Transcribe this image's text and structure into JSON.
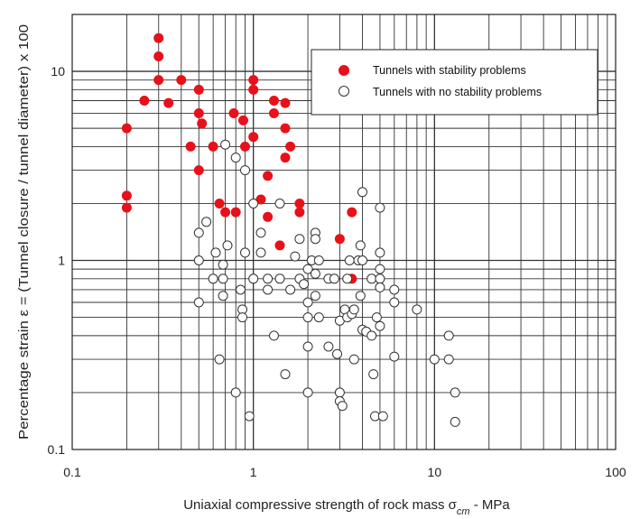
{
  "chart_data": {
    "type": "scatter",
    "xscale": "log",
    "yscale": "log",
    "xlim": [
      0.1,
      100
    ],
    "ylim": [
      0.1,
      20
    ],
    "grid": true,
    "legend_position": "top-right",
    "x_ticks": [
      {
        "value": 0.1,
        "label": "0.1"
      },
      {
        "value": 1,
        "label": "1"
      },
      {
        "value": 10,
        "label": "10"
      },
      {
        "value": 100,
        "label": "100"
      }
    ],
    "y_ticks": [
      {
        "value": 0.1,
        "label": "0.1"
      },
      {
        "value": 1,
        "label": "1"
      },
      {
        "value": 10,
        "label": "10"
      }
    ],
    "xlabel": {
      "prefix": "Uniaxial compressive strength of rock mass σ",
      "subscript": "cm",
      "suffix": " - MPa"
    },
    "ylabel": "Percentage strain ε = (Tunnel closure / tunnel diameter) x 100",
    "colors": {
      "filled": "#e8111a",
      "hollow_fill": "#ffffff",
      "hollow_stroke": "#333333",
      "grid": "#333333"
    },
    "series": [
      {
        "name": "Tunnels with stability problems",
        "marker": "filled",
        "points": [
          [
            0.2,
            5.0
          ],
          [
            0.2,
            2.2
          ],
          [
            0.2,
            1.9
          ],
          [
            0.25,
            7.0
          ],
          [
            0.3,
            15.0
          ],
          [
            0.3,
            12.0
          ],
          [
            0.3,
            9.0
          ],
          [
            0.34,
            6.8
          ],
          [
            0.4,
            9.0
          ],
          [
            0.45,
            4.0
          ],
          [
            0.5,
            8.0
          ],
          [
            0.5,
            6.0
          ],
          [
            0.5,
            3.0
          ],
          [
            0.52,
            5.3
          ],
          [
            0.6,
            4.0
          ],
          [
            0.65,
            2.0
          ],
          [
            0.7,
            1.8
          ],
          [
            0.78,
            6.0
          ],
          [
            0.8,
            1.8
          ],
          [
            0.88,
            5.5
          ],
          [
            0.9,
            4.0
          ],
          [
            1.0,
            9.0
          ],
          [
            1.0,
            8.0
          ],
          [
            1.0,
            4.5
          ],
          [
            1.1,
            2.1
          ],
          [
            1.2,
            2.8
          ],
          [
            1.2,
            1.7
          ],
          [
            1.3,
            7.0
          ],
          [
            1.3,
            6.0
          ],
          [
            1.4,
            1.2
          ],
          [
            1.5,
            6.8
          ],
          [
            1.5,
            5.0
          ],
          [
            1.5,
            3.5
          ],
          [
            1.6,
            4.0
          ],
          [
            1.8,
            2.0
          ],
          [
            1.8,
            1.8
          ],
          [
            3.0,
            1.3
          ],
          [
            3.5,
            1.8
          ],
          [
            3.5,
            0.8
          ]
        ]
      },
      {
        "name": "Tunnels with no stability problems",
        "marker": "hollow",
        "points": [
          [
            0.5,
            1.4
          ],
          [
            0.5,
            1.0
          ],
          [
            0.5,
            0.6
          ],
          [
            0.55,
            1.6
          ],
          [
            0.6,
            0.8
          ],
          [
            0.62,
            1.1
          ],
          [
            0.65,
            0.3
          ],
          [
            0.68,
            0.95
          ],
          [
            0.68,
            0.8
          ],
          [
            0.68,
            0.65
          ],
          [
            0.7,
            4.1
          ],
          [
            0.72,
            1.2
          ],
          [
            0.8,
            3.5
          ],
          [
            0.8,
            0.2
          ],
          [
            0.85,
            0.7
          ],
          [
            0.87,
            0.55
          ],
          [
            0.87,
            0.5
          ],
          [
            0.9,
            3.0
          ],
          [
            0.9,
            1.1
          ],
          [
            0.95,
            0.15
          ],
          [
            1.0,
            2.0
          ],
          [
            1.0,
            0.8
          ],
          [
            1.1,
            1.4
          ],
          [
            1.1,
            1.1
          ],
          [
            1.2,
            0.8
          ],
          [
            1.2,
            0.7
          ],
          [
            1.3,
            0.4
          ],
          [
            1.4,
            2.0
          ],
          [
            1.4,
            0.8
          ],
          [
            1.5,
            0.25
          ],
          [
            1.6,
            0.7
          ],
          [
            1.7,
            1.05
          ],
          [
            1.8,
            1.3
          ],
          [
            1.8,
            0.8
          ],
          [
            1.9,
            0.75
          ],
          [
            2.0,
            0.9
          ],
          [
            2.0,
            0.6
          ],
          [
            2.0,
            0.5
          ],
          [
            2.0,
            0.35
          ],
          [
            2.0,
            0.2
          ],
          [
            2.1,
            1.0
          ],
          [
            2.2,
            1.4
          ],
          [
            2.2,
            1.3
          ],
          [
            2.2,
            0.85
          ],
          [
            2.2,
            0.65
          ],
          [
            2.3,
            0.5
          ],
          [
            2.3,
            1.0
          ],
          [
            2.6,
            0.35
          ],
          [
            2.6,
            0.8
          ],
          [
            2.8,
            0.8
          ],
          [
            2.9,
            0.32
          ],
          [
            3.0,
            0.48
          ],
          [
            3.0,
            0.2
          ],
          [
            3.0,
            0.18
          ],
          [
            3.1,
            0.17
          ],
          [
            3.2,
            0.55
          ],
          [
            3.3,
            0.5
          ],
          [
            3.3,
            0.8
          ],
          [
            3.4,
            1.0
          ],
          [
            3.5,
            0.52
          ],
          [
            3.6,
            0.55
          ],
          [
            3.6,
            0.3
          ],
          [
            3.8,
            1.0
          ],
          [
            3.9,
            1.2
          ],
          [
            3.9,
            0.65
          ],
          [
            4.0,
            2.3
          ],
          [
            4.0,
            1.0
          ],
          [
            4.0,
            0.43
          ],
          [
            4.2,
            0.42
          ],
          [
            4.5,
            0.8
          ],
          [
            4.5,
            0.4
          ],
          [
            4.6,
            0.25
          ],
          [
            4.7,
            0.15
          ],
          [
            4.8,
            0.5
          ],
          [
            5.0,
            1.9
          ],
          [
            5.0,
            1.1
          ],
          [
            5.0,
            0.9
          ],
          [
            5.0,
            0.8
          ],
          [
            5.0,
            0.72
          ],
          [
            5.0,
            0.45
          ],
          [
            5.2,
            0.15
          ],
          [
            6.0,
            0.7
          ],
          [
            6.0,
            0.6
          ],
          [
            6.0,
            0.31
          ],
          [
            8.0,
            0.55
          ],
          [
            10.0,
            0.3
          ],
          [
            12.0,
            0.4
          ],
          [
            12.0,
            0.3
          ],
          [
            13.0,
            0.2
          ],
          [
            13.0,
            0.14
          ]
        ]
      }
    ]
  }
}
